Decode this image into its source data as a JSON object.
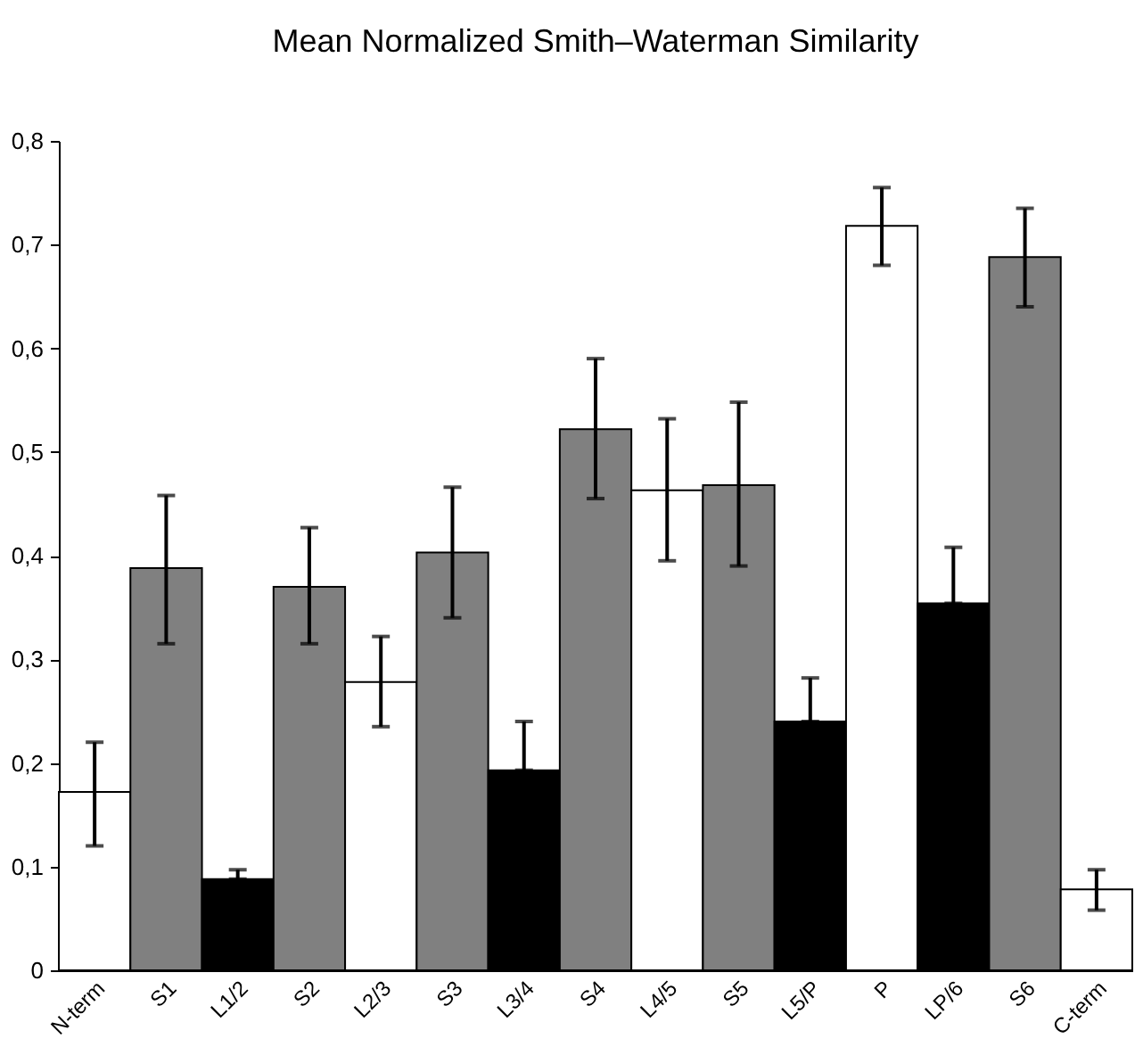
{
  "chart_data": {
    "type": "bar",
    "title": "Mean Normalized Smith–Waterman Similarity",
    "categories": [
      "N-term",
      "S1",
      "L1/2",
      "S2",
      "L2/3",
      "S3",
      "L3/4",
      "S4",
      "L4/5",
      "S5",
      "L5/P",
      "P",
      "LP/6",
      "S6",
      "C-term"
    ],
    "values": [
      0.172,
      0.388,
      0.088,
      0.37,
      0.278,
      0.403,
      0.193,
      0.522,
      0.463,
      0.468,
      0.24,
      0.718,
      0.354,
      0.688,
      0.078
    ],
    "colors": [
      "#ffffff",
      "#808080",
      "#000000",
      "#808080",
      "#ffffff",
      "#808080",
      "#000000",
      "#808080",
      "#ffffff",
      "#808080",
      "#000000",
      "#ffffff",
      "#000000",
      "#808080",
      "#ffffff"
    ],
    "errors": [
      [
        0.12,
        0.22
      ],
      [
        0.315,
        0.458
      ],
      [
        0.088,
        0.097
      ],
      [
        0.315,
        0.427
      ],
      [
        0.235,
        0.322
      ],
      [
        0.34,
        0.466
      ],
      [
        0.193,
        0.24
      ],
      [
        0.455,
        0.59
      ],
      [
        0.395,
        0.532
      ],
      [
        0.39,
        0.548
      ],
      [
        0.24,
        0.282
      ],
      [
        0.68,
        0.755
      ],
      [
        0.354,
        0.408
      ],
      [
        0.64,
        0.735
      ],
      [
        0.058,
        0.097
      ]
    ],
    "ylim": [
      0,
      0.8
    ],
    "yticks": [
      0,
      {
        "value": 0.1,
        "label": "0,1"
      },
      {
        "value": 0.2,
        "label": "0,2"
      },
      {
        "value": 0.3,
        "label": "0,3"
      },
      {
        "value": 0.4,
        "label": "0,4"
      },
      {
        "value": 0.5,
        "label": "0,5"
      },
      {
        "value": 0.6,
        "label": "0,6"
      },
      {
        "value": 0.7,
        "label": "0,7"
      },
      {
        "value": 0.8,
        "label": "0,8"
      }
    ],
    "grid": false
  }
}
